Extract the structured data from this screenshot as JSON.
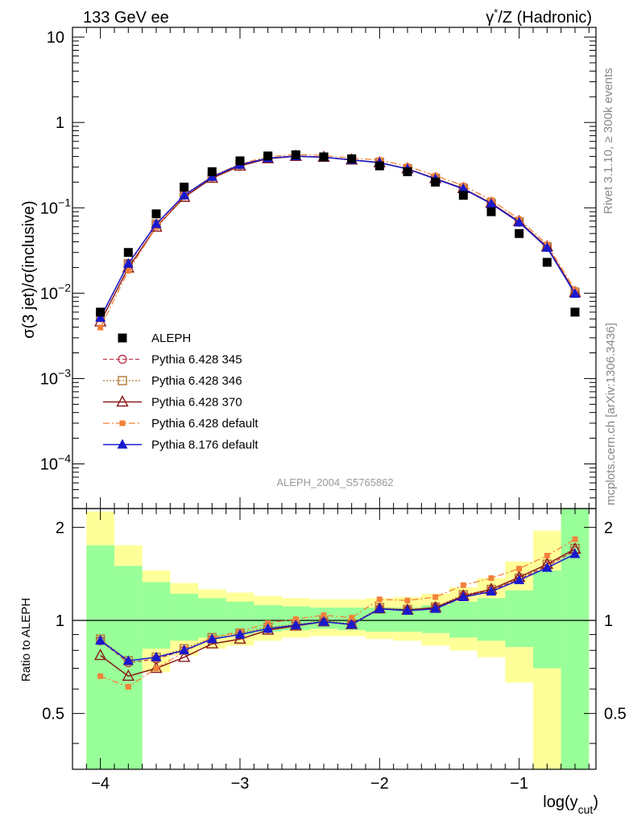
{
  "header": {
    "left": "133 GeV ee",
    "right_prefix": "γ",
    "right_sup": "*",
    "right_suffix": "/Z (Hadronic)"
  },
  "side_text": {
    "rivet": "Rivet 3.1.10, ≥ 300k events",
    "mcplots": "mcplots.cern.ch [arXiv:1306.3436]"
  },
  "watermark": "ALEPH_2004_S5765862",
  "chart_data": {
    "type": "scatter",
    "title": "133 GeV ee",
    "xlabel": "log(y_cut)",
    "xlabel_main": "log(y",
    "xlabel_sub": "cut",
    "xlabel_close": ")",
    "ylabel": "σ(3 jet)/σ(inclusive)",
    "ratio_ylabel": "Ratio to ALEPH",
    "xlim": [
      -4.2,
      -0.45
    ],
    "ylim": [
      3e-05,
      13
    ],
    "ratio_ylim": [
      0.33,
      2.3
    ],
    "xticks": [
      -4,
      -3,
      -2,
      -1
    ],
    "xtick_labels": [
      "−4",
      "−3",
      "−2",
      "−1"
    ],
    "yticks": [
      {
        "value": 10,
        "base": "10",
        "exp": ""
      },
      {
        "value": 1,
        "base": "1",
        "exp": ""
      },
      {
        "value": 0.1,
        "base": "10",
        "exp": "−1"
      },
      {
        "value": 0.01,
        "base": "10",
        "exp": "−2"
      },
      {
        "value": 0.001,
        "base": "10",
        "exp": "−3"
      },
      {
        "value": 0.0001,
        "base": "10",
        "exp": "−4"
      }
    ],
    "ratio_yticks": [
      {
        "value": 2,
        "label": "2"
      },
      {
        "value": 1,
        "label": "1"
      },
      {
        "value": 0.5,
        "label": "0.5"
      }
    ],
    "x": [
      -4.0,
      -3.8,
      -3.6,
      -3.4,
      -3.2,
      -3.0,
      -2.8,
      -2.6,
      -2.4,
      -2.2,
      -2.0,
      -1.8,
      -1.6,
      -1.4,
      -1.2,
      -1.0,
      -0.8,
      -0.6
    ],
    "bin_edges": [
      -4.1,
      -3.9,
      -3.7,
      -3.5,
      -3.3,
      -3.1,
      -2.9,
      -2.7,
      -2.5,
      -2.3,
      -2.1,
      -1.9,
      -1.7,
      -1.5,
      -1.3,
      -1.1,
      -0.9,
      -0.7,
      -0.5
    ],
    "band_green": [
      [
        0.33,
        1.75
      ],
      [
        0.33,
        1.5
      ],
      [
        0.81,
        1.33
      ],
      [
        0.86,
        1.22
      ],
      [
        0.88,
        1.18
      ],
      [
        0.9,
        1.15
      ],
      [
        0.92,
        1.12
      ],
      [
        0.93,
        1.11
      ],
      [
        0.94,
        1.1
      ],
      [
        0.93,
        1.1
      ],
      [
        0.92,
        1.1
      ],
      [
        0.92,
        1.1
      ],
      [
        0.91,
        1.12
      ],
      [
        0.88,
        1.15
      ],
      [
        0.86,
        1.18
      ],
      [
        0.82,
        1.25
      ],
      [
        0.7,
        1.45
      ],
      [
        0.33,
        2.3
      ]
    ],
    "band_yellow": [
      [
        0.33,
        2.25
      ],
      [
        0.33,
        1.75
      ],
      [
        0.68,
        1.45
      ],
      [
        0.77,
        1.32
      ],
      [
        0.81,
        1.26
      ],
      [
        0.83,
        1.23
      ],
      [
        0.86,
        1.2
      ],
      [
        0.88,
        1.18
      ],
      [
        0.89,
        1.17
      ],
      [
        0.89,
        1.17
      ],
      [
        0.87,
        1.18
      ],
      [
        0.86,
        1.19
      ],
      [
        0.83,
        1.22
      ],
      [
        0.8,
        1.28
      ],
      [
        0.76,
        1.37
      ],
      [
        0.63,
        1.55
      ],
      [
        0.33,
        1.95
      ],
      [
        0.33,
        2.3
      ]
    ],
    "series": [
      {
        "name": "ALEPH",
        "marker": "square",
        "color": "#000000",
        "dash": "",
        "width": 0,
        "values": [
          0.006,
          0.03,
          0.085,
          0.175,
          0.265,
          0.355,
          0.405,
          0.418,
          0.395,
          0.375,
          0.31,
          0.265,
          0.2,
          0.14,
          0.09,
          0.05,
          0.023,
          0.006
        ]
      },
      {
        "name": "Pythia 6.428 345",
        "marker": "circle-open",
        "color": "#c0394f",
        "dash": "5,3",
        "width": 1.3,
        "ratio": [
          0.86,
          0.73,
          0.75,
          0.8,
          0.87,
          0.9,
          0.94,
          0.965,
          0.99,
          0.97,
          1.09,
          1.08,
          1.1,
          1.2,
          1.25,
          1.36,
          1.5,
          1.68
        ]
      },
      {
        "name": "Pythia 6.428 346",
        "marker": "square-open",
        "color": "#b07835",
        "dash": "2,2",
        "width": 1.3,
        "ratio": [
          0.87,
          0.74,
          0.76,
          0.81,
          0.88,
          0.91,
          0.95,
          0.97,
          0.995,
          0.975,
          1.1,
          1.085,
          1.105,
          1.21,
          1.26,
          1.37,
          1.52,
          1.71
        ]
      },
      {
        "name": "Pythia 6.428 370",
        "marker": "triangle-open",
        "color": "#8b1a1a",
        "dash": "",
        "width": 1.5,
        "ratio": [
          0.77,
          0.66,
          0.7,
          0.76,
          0.84,
          0.87,
          0.93,
          0.96,
          0.99,
          0.97,
          1.09,
          1.08,
          1.1,
          1.2,
          1.26,
          1.38,
          1.52,
          1.7
        ]
      },
      {
        "name": "Pythia 6.428 default",
        "marker": "square-small",
        "color": "#f2813a",
        "dash": "8,3,2,3",
        "width": 1.3,
        "ratio": [
          0.66,
          0.61,
          0.7,
          0.79,
          0.88,
          0.92,
          0.98,
          1.01,
          1.04,
          1.02,
          1.17,
          1.16,
          1.19,
          1.3,
          1.37,
          1.47,
          1.62,
          1.83
        ]
      },
      {
        "name": "Pythia 8.176 default",
        "marker": "triangle",
        "color": "#1a1acc",
        "dash": "",
        "width": 1.5,
        "ratio": [
          0.86,
          0.74,
          0.76,
          0.8,
          0.87,
          0.9,
          0.94,
          0.965,
          0.99,
          0.97,
          1.09,
          1.075,
          1.09,
          1.19,
          1.24,
          1.35,
          1.48,
          1.64
        ]
      }
    ]
  }
}
